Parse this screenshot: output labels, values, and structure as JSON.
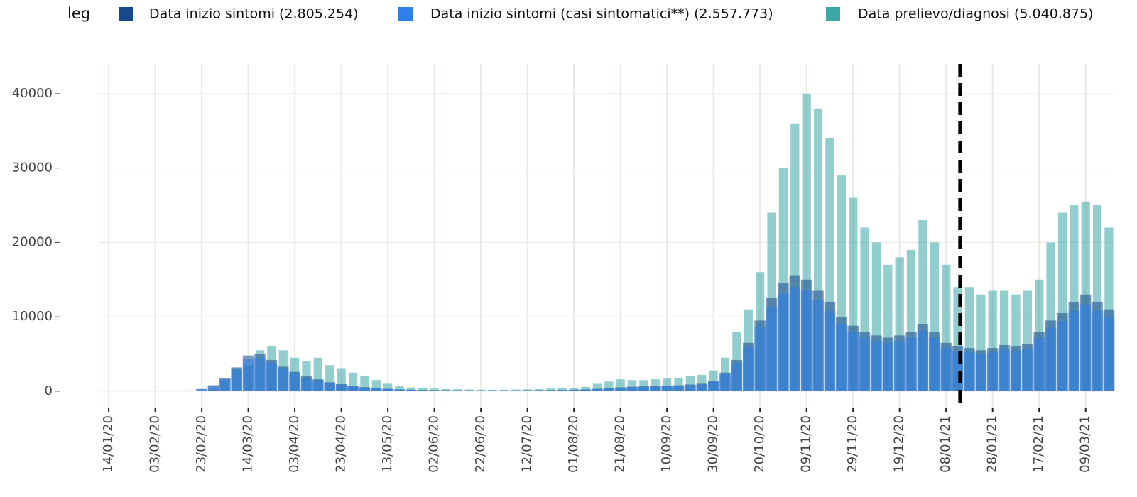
{
  "chart_data": {
    "type": "bar",
    "legend_title": "leg",
    "x": [
      "14/01/20",
      "19/01/20",
      "24/01/20",
      "29/01/20",
      "03/02/20",
      "08/02/20",
      "13/02/20",
      "18/02/20",
      "23/02/20",
      "28/02/20",
      "04/03/20",
      "09/03/20",
      "14/03/20",
      "19/03/20",
      "24/03/20",
      "29/03/20",
      "03/04/20",
      "08/04/20",
      "13/04/20",
      "18/04/20",
      "23/04/20",
      "28/04/20",
      "03/05/20",
      "08/05/20",
      "13/05/20",
      "18/05/20",
      "23/05/20",
      "28/05/20",
      "02/06/20",
      "07/06/20",
      "12/06/20",
      "17/06/20",
      "22/06/20",
      "27/06/20",
      "02/07/20",
      "07/07/20",
      "12/07/20",
      "17/07/20",
      "22/07/20",
      "27/07/20",
      "01/08/20",
      "06/08/20",
      "11/08/20",
      "16/08/20",
      "21/08/20",
      "26/08/20",
      "31/08/20",
      "05/09/20",
      "10/09/20",
      "15/09/20",
      "20/09/20",
      "25/09/20",
      "30/09/20",
      "05/10/20",
      "10/10/20",
      "15/10/20",
      "20/10/20",
      "25/10/20",
      "30/10/20",
      "04/11/20",
      "09/11/20",
      "14/11/20",
      "19/11/20",
      "24/11/20",
      "29/11/20",
      "04/12/20",
      "09/12/20",
      "14/12/20",
      "19/12/20",
      "24/12/20",
      "29/12/20",
      "03/01/21",
      "08/01/21",
      "13/01/21",
      "18/01/21",
      "23/01/21",
      "28/01/21",
      "02/02/21",
      "07/02/21",
      "12/02/21",
      "17/02/21",
      "22/02/21",
      "27/02/21",
      "04/03/21",
      "09/03/21",
      "14/03/21",
      "19/03/21"
    ],
    "series": [
      {
        "name": "Data inizio sintomi (2.805.254)",
        "color": "#174a8c",
        "values": [
          0,
          0,
          0,
          0,
          10,
          20,
          40,
          100,
          300,
          800,
          1800,
          3200,
          4800,
          5000,
          4200,
          3300,
          2600,
          2000,
          1600,
          1200,
          950,
          750,
          550,
          400,
          320,
          250,
          200,
          170,
          150,
          130,
          120,
          110,
          110,
          110,
          110,
          120,
          130,
          140,
          150,
          170,
          200,
          250,
          320,
          400,
          520,
          600,
          650,
          700,
          750,
          800,
          900,
          1000,
          1400,
          2500,
          4200,
          6500,
          9500,
          12500,
          14500,
          15500,
          15000,
          13500,
          12000,
          10000,
          8800,
          8000,
          7500,
          7200,
          7500,
          8000,
          9000,
          8000,
          6500,
          6000,
          5800,
          5500,
          5800,
          6200,
          6000,
          6300,
          8000,
          9500,
          10500,
          12000,
          13000,
          12000,
          11000
        ]
      },
      {
        "name": "Data inizio sintomi (casi sintomatici**) (2.557.773)",
        "color": "#2f7fe8",
        "values": [
          0,
          0,
          0,
          0,
          9,
          18,
          36,
          90,
          270,
          720,
          1620,
          2900,
          4300,
          4500,
          3800,
          3000,
          2350,
          1800,
          1450,
          1100,
          860,
          680,
          500,
          360,
          290,
          225,
          180,
          150,
          135,
          120,
          110,
          100,
          100,
          100,
          100,
          110,
          120,
          125,
          135,
          150,
          180,
          225,
          290,
          360,
          470,
          540,
          590,
          630,
          680,
          720,
          810,
          900,
          1260,
          2250,
          3800,
          5900,
          8600,
          11300,
          13100,
          14000,
          13500,
          12200,
          10800,
          9000,
          7900,
          7200,
          6750,
          6500,
          6750,
          7200,
          8100,
          7200,
          5850,
          5400,
          5200,
          4950,
          5200,
          5600,
          5400,
          5700,
          7200,
          8550,
          9450,
          10800,
          11700,
          10800,
          9900
        ]
      },
      {
        "name": "Data prelievo/diagnosi (5.040.875)",
        "color": "#3aa6a6",
        "values": [
          0,
          0,
          0,
          0,
          0,
          0,
          0,
          0,
          50,
          300,
          1500,
          3000,
          3500,
          5500,
          6000,
          5500,
          4500,
          4000,
          4500,
          3500,
          3000,
          2500,
          2000,
          1500,
          1000,
          700,
          500,
          400,
          350,
          280,
          250,
          220,
          200,
          200,
          200,
          220,
          250,
          280,
          350,
          400,
          450,
          600,
          1000,
          1300,
          1600,
          1500,
          1500,
          1600,
          1700,
          1800,
          2000,
          2200,
          2800,
          4500,
          8000,
          11000,
          16000,
          24000,
          30000,
          36000,
          40000,
          38000,
          34000,
          29000,
          26000,
          22000,
          20000,
          17000,
          18000,
          19000,
          23000,
          20000,
          17000,
          14000,
          14000,
          13000,
          13500,
          13500,
          13000,
          13500,
          15000,
          20000,
          24000,
          25000,
          25500,
          25000,
          22000
        ]
      }
    ],
    "xlim": [
      "10/01/20",
      "21/03/21"
    ],
    "xticks": [
      "14/01/20",
      "03/02/20",
      "23/02/20",
      "14/03/20",
      "03/04/20",
      "23/04/20",
      "13/05/20",
      "02/06/20",
      "22/06/20",
      "12/07/20",
      "01/08/20",
      "21/08/20",
      "10/09/20",
      "30/09/20",
      "20/10/20",
      "09/11/20",
      "29/11/20",
      "19/12/20",
      "08/01/21",
      "28/01/21",
      "17/02/21",
      "09/03/21"
    ],
    "ylim": [
      -2300,
      44000
    ],
    "yticks": [
      0,
      10000,
      20000,
      30000,
      40000
    ],
    "grid": true,
    "vline": "14/01/21"
  }
}
